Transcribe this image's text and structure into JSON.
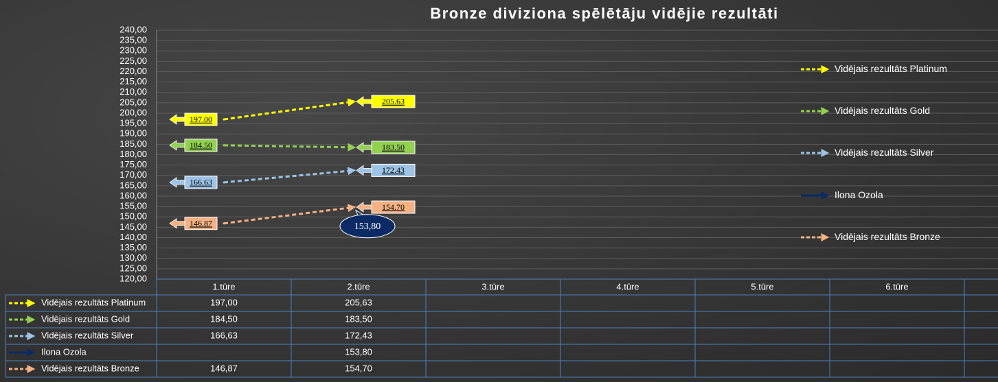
{
  "chart_data": {
    "type": "line",
    "title": "Bronze diviziona spēlētāju vidējie rezultāti",
    "categories": [
      "1.tūre",
      "2.tūre",
      "3.tūre",
      "4.tūre",
      "5.tūre",
      "6.tūre",
      null
    ],
    "series": [
      {
        "name": "Vidējais rezultāts Platinum",
        "color": "#ffff00",
        "dashed": true,
        "values": [
          197.0,
          205.63,
          null,
          null,
          null,
          null,
          null
        ],
        "value_labels": [
          "197.00",
          "205.63",
          null,
          null,
          null,
          null,
          null
        ],
        "table_labels": [
          "197,00",
          "205,63",
          null,
          null,
          null,
          null,
          null
        ]
      },
      {
        "name": "Vidējais rezultāts Gold",
        "color": "#92d050",
        "dashed": true,
        "values": [
          184.5,
          183.5,
          null,
          null,
          null,
          null,
          null
        ],
        "value_labels": [
          "184.50",
          "183.50",
          null,
          null,
          null,
          null,
          null
        ],
        "table_labels": [
          "184,50",
          "183,50",
          null,
          null,
          null,
          null,
          null
        ]
      },
      {
        "name": "Vidējais rezultāts Silver",
        "color": "#9dc3e6",
        "dashed": true,
        "values": [
          166.63,
          172.43,
          null,
          null,
          null,
          null,
          null
        ],
        "value_labels": [
          "166.63",
          "172.43",
          null,
          null,
          null,
          null,
          null
        ],
        "table_labels": [
          "166,63",
          "172,43",
          null,
          null,
          null,
          null,
          null
        ]
      },
      {
        "name": "Ilona Ozola",
        "color": "#0b2a66",
        "dashed": false,
        "values": [
          null,
          153.8,
          null,
          null,
          null,
          null,
          null
        ],
        "value_labels": [
          null,
          "153,80",
          null,
          null,
          null,
          null,
          null
        ],
        "table_labels": [
          null,
          "153,80",
          null,
          null,
          null,
          null,
          null
        ]
      },
      {
        "name": "Vidējais rezultāts Bronze",
        "color": "#f4b183",
        "dashed": true,
        "values": [
          146.87,
          154.7,
          null,
          null,
          null,
          null,
          null
        ],
        "value_labels": [
          "146.87",
          "154.70",
          null,
          null,
          null,
          null,
          null
        ],
        "table_labels": [
          "146,87",
          "154,70",
          null,
          null,
          null,
          null,
          null
        ]
      }
    ],
    "ylim": [
      120,
      240
    ],
    "yticks": [
      {
        "value": 120,
        "label": "120,00"
      },
      {
        "value": 125,
        "label": "125,00"
      },
      {
        "value": 130,
        "label": "130,00"
      },
      {
        "value": 135,
        "label": "135,00"
      },
      {
        "value": 140,
        "label": "140,00"
      },
      {
        "value": 145,
        "label": "145,00"
      },
      {
        "value": 150,
        "label": "150,00"
      },
      {
        "value": 155,
        "label": "155,00"
      },
      {
        "value": 160,
        "label": "160,00"
      },
      {
        "value": 165,
        "label": "165,00"
      },
      {
        "value": 170,
        "label": "170,00"
      },
      {
        "value": 175,
        "label": "175,00"
      },
      {
        "value": 180,
        "label": "180,00"
      },
      {
        "value": 185,
        "label": "185,00"
      },
      {
        "value": 190,
        "label": "190,00"
      },
      {
        "value": 195,
        "label": "195,00"
      },
      {
        "value": 200,
        "label": "200,00"
      },
      {
        "value": 205,
        "label": "205,00"
      },
      {
        "value": 210,
        "label": "210,00"
      },
      {
        "value": 215,
        "label": "215,00"
      },
      {
        "value": 220,
        "label": "220,00"
      },
      {
        "value": 225,
        "label": "225,00"
      },
      {
        "value": 230,
        "label": "230,00"
      },
      {
        "value": 235,
        "label": "235,00"
      },
      {
        "value": 240,
        "label": "240,00"
      }
    ],
    "grid": true,
    "legend": "right",
    "data_table": true
  }
}
